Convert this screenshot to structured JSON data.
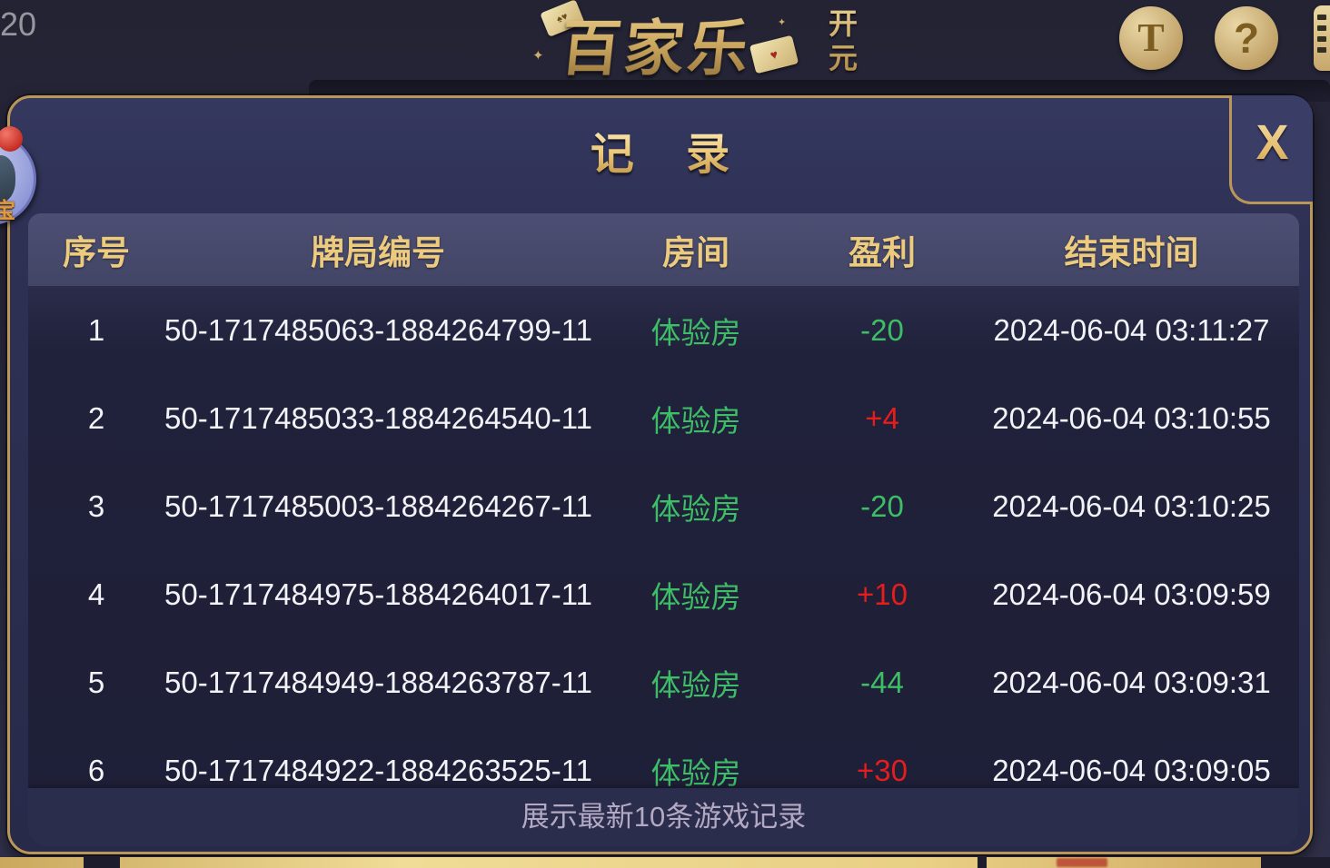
{
  "page": {
    "fps_label": "20"
  },
  "header": {
    "title": "百家乐",
    "subtitle_chars": [
      "开",
      "元"
    ],
    "deco_left": "♠♥",
    "deco_right": "♥",
    "text_button": "T",
    "help_button": "?"
  },
  "mascot": {
    "label": "宝"
  },
  "dialog": {
    "title": "记 录",
    "close_label": "X",
    "footer": "展示最新10条游戏记录",
    "table": {
      "columns": [
        "序号",
        "牌局编号",
        "房间",
        "盈利",
        "结束时间"
      ],
      "rows": [
        {
          "no": "1",
          "game_id": "50-1717485063-1884264799-11",
          "room": "体验房",
          "profit": "-20",
          "profit_color": "green",
          "end_time": "2024-06-04 03:11:27"
        },
        {
          "no": "2",
          "game_id": "50-1717485033-1884264540-11",
          "room": "体验房",
          "profit": "+4",
          "profit_color": "red",
          "end_time": "2024-06-04 03:10:55"
        },
        {
          "no": "3",
          "game_id": "50-1717485003-1884264267-11",
          "room": "体验房",
          "profit": "-20",
          "profit_color": "green",
          "end_time": "2024-06-04 03:10:25"
        },
        {
          "no": "4",
          "game_id": "50-1717484975-1884264017-11",
          "room": "体验房",
          "profit": "+10",
          "profit_color": "red",
          "end_time": "2024-06-04 03:09:59"
        },
        {
          "no": "5",
          "game_id": "50-1717484949-1884263787-11",
          "room": "体验房",
          "profit": "-44",
          "profit_color": "green",
          "end_time": "2024-06-04 03:09:31"
        },
        {
          "no": "6",
          "game_id": "50-1717484922-1884263525-11",
          "room": "体验房",
          "profit": "+30",
          "profit_color": "red",
          "end_time": "2024-06-04 03:09:05"
        }
      ]
    }
  },
  "colors": {
    "green": "#3dbd66",
    "red": "#e51d1d",
    "gold": "#d9b36a",
    "row_text": "#f2f3f7",
    "header_text": "#ecca7e"
  }
}
